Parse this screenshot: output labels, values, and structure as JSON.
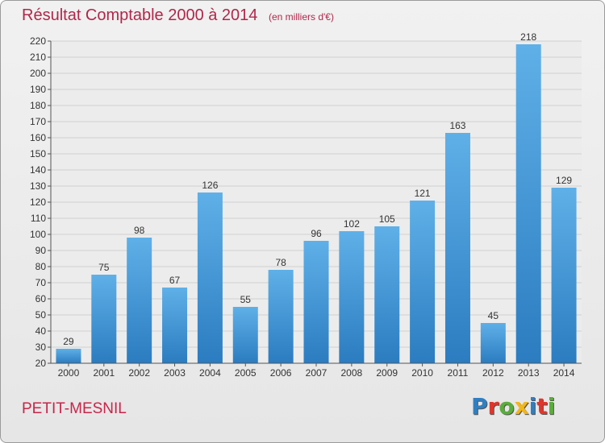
{
  "title": "Résultat Comptable 2000 à 2014",
  "subtitle": "(en milliers d'€)",
  "commune": "PETIT-MESNIL",
  "logo": {
    "text": "Proxiti",
    "colors": [
      "#2f7fc2",
      "#e0362c",
      "#5aae3a",
      "#f2b619",
      "#2f7fc2",
      "#e0362c",
      "#5aae3a"
    ]
  },
  "colors": {
    "title": "#b0274a",
    "bar_light": "#5fb0e8",
    "bar_dark": "#2b7cc0"
  },
  "chart_data": {
    "type": "bar",
    "categories": [
      "2000",
      "2001",
      "2002",
      "2003",
      "2004",
      "2005",
      "2006",
      "2007",
      "2008",
      "2009",
      "2010",
      "2011",
      "2012",
      "2013",
      "2014"
    ],
    "values": [
      29,
      75,
      98,
      67,
      126,
      55,
      78,
      96,
      102,
      105,
      121,
      163,
      45,
      218,
      129
    ],
    "ylim": [
      20,
      220
    ],
    "yticks": [
      20,
      30,
      40,
      50,
      60,
      70,
      80,
      90,
      100,
      110,
      120,
      130,
      140,
      150,
      160,
      170,
      180,
      190,
      200,
      210,
      220
    ],
    "grid": true,
    "data_labels": true
  }
}
